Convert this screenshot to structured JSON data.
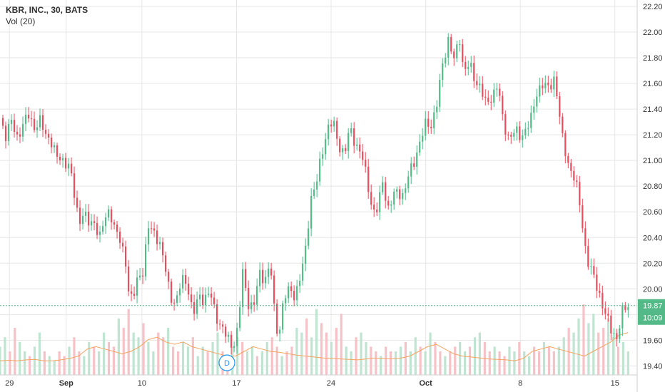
{
  "header": {
    "title": "KBR, INC., 30, BATS",
    "volume_label": "Vol (20)"
  },
  "marker": {
    "label": "D"
  },
  "chart_data": {
    "type": "candlestick",
    "ylim": [
      19.33,
      22.25
    ],
    "y_ticks": [
      "22.20",
      "22.00",
      "21.80",
      "21.60",
      "21.40",
      "21.20",
      "21.00",
      "20.80",
      "20.60",
      "20.40",
      "20.20",
      "20.00",
      "19.80",
      "19.60",
      "19.40"
    ],
    "x_ticks": [
      {
        "label": "29",
        "x": 0.5,
        "bold": false
      },
      {
        "label": "Sep",
        "x": 3.5,
        "bold": true
      },
      {
        "label": "10",
        "x": 7.5,
        "bold": false
      },
      {
        "label": "17",
        "x": 12.5,
        "bold": false
      },
      {
        "label": "24",
        "x": 17.5,
        "bold": false
      },
      {
        "label": "Oct",
        "x": 22.5,
        "bold": true
      },
      {
        "label": "8",
        "x": 27.5,
        "bold": false
      },
      {
        "label": "15",
        "x": 32.5,
        "bold": false
      }
    ],
    "last_price": "19.87",
    "countdown": "10:09",
    "colors": {
      "up": "#53b987",
      "down": "#eb4d5c",
      "volume_up": "#bfe4d1",
      "volume_down": "#f6c2c7",
      "volume_ma": "#f5a25d",
      "last_price": "#53b987",
      "marker": "#2196f3",
      "grid": "#e6e6e6"
    },
    "price_path": [
      [
        0,
        21.33
      ],
      [
        0.3,
        21.2
      ],
      [
        0.6,
        21.3
      ],
      [
        0.9,
        21.18
      ],
      [
        1.2,
        21.28
      ],
      [
        1.5,
        21.35
      ],
      [
        1.8,
        21.26
      ],
      [
        2.1,
        21.31
      ],
      [
        2.4,
        21.2
      ],
      [
        2.7,
        21.16
      ],
      [
        3.0,
        21.02
      ],
      [
        3.3,
        21.0
      ],
      [
        3.6,
        20.98
      ],
      [
        3.8,
        20.85
      ],
      [
        4.0,
        20.65
      ],
      [
        4.2,
        20.53
      ],
      [
        4.4,
        20.6
      ],
      [
        4.7,
        20.5
      ],
      [
        5.0,
        20.52
      ],
      [
        5.3,
        20.4
      ],
      [
        5.5,
        20.53
      ],
      [
        5.8,
        20.62
      ],
      [
        6.1,
        20.45
      ],
      [
        6.4,
        20.35
      ],
      [
        6.7,
        20.18
      ],
      [
        6.8,
        19.98
      ],
      [
        7.0,
        19.9
      ],
      [
        7.3,
        20.1
      ],
      [
        7.6,
        20.15
      ],
      [
        7.8,
        20.48
      ],
      [
        8.1,
        20.45
      ],
      [
        8.4,
        20.38
      ],
      [
        8.7,
        20.18
      ],
      [
        9.0,
        19.95
      ],
      [
        9.3,
        19.88
      ],
      [
        9.6,
        20.08
      ],
      [
        9.9,
        20.05
      ],
      [
        10.2,
        19.78
      ],
      [
        10.5,
        19.95
      ],
      [
        10.8,
        19.92
      ],
      [
        11.1,
        19.97
      ],
      [
        11.4,
        19.8
      ],
      [
        11.7,
        19.7
      ],
      [
        12.0,
        19.62
      ],
      [
        12.3,
        19.55
      ],
      [
        12.6,
        19.7
      ],
      [
        12.8,
        20.15
      ],
      [
        13.1,
        19.9
      ],
      [
        13.4,
        19.85
      ],
      [
        13.7,
        20.12
      ],
      [
        14.0,
        20.08
      ],
      [
        14.3,
        20.18
      ],
      [
        14.5,
        19.82
      ],
      [
        14.7,
        19.62
      ],
      [
        15.0,
        19.92
      ],
      [
        15.3,
        20.0
      ],
      [
        15.6,
        19.95
      ],
      [
        15.9,
        20.1
      ],
      [
        16.2,
        20.35
      ],
      [
        16.4,
        20.7
      ],
      [
        16.7,
        20.8
      ],
      [
        17.0,
        21.05
      ],
      [
        17.3,
        21.25
      ],
      [
        17.6,
        21.3
      ],
      [
        17.9,
        21.12
      ],
      [
        18.2,
        21.05
      ],
      [
        18.5,
        21.25
      ],
      [
        18.8,
        21.13
      ],
      [
        19.1,
        21.05
      ],
      [
        19.4,
        20.85
      ],
      [
        19.7,
        20.6
      ],
      [
        20.0,
        20.62
      ],
      [
        20.2,
        20.86
      ],
      [
        20.5,
        20.62
      ],
      [
        20.8,
        20.72
      ],
      [
        21.0,
        20.76
      ],
      [
        21.3,
        20.73
      ],
      [
        21.6,
        20.88
      ],
      [
        21.9,
        21.0
      ],
      [
        22.2,
        21.15
      ],
      [
        22.5,
        21.28
      ],
      [
        22.8,
        21.28
      ],
      [
        23.1,
        21.45
      ],
      [
        23.4,
        21.75
      ],
      [
        23.7,
        21.95
      ],
      [
        24.0,
        21.78
      ],
      [
        24.3,
        21.95
      ],
      [
        24.5,
        21.7
      ],
      [
        24.8,
        21.75
      ],
      [
        25.1,
        21.62
      ],
      [
        25.4,
        21.58
      ],
      [
        25.7,
        21.42
      ],
      [
        26.0,
        21.5
      ],
      [
        26.3,
        21.6
      ],
      [
        26.6,
        21.28
      ],
      [
        26.9,
        21.18
      ],
      [
        27.2,
        21.23
      ],
      [
        27.5,
        21.18
      ],
      [
        27.8,
        21.25
      ],
      [
        28.1,
        21.33
      ],
      [
        28.4,
        21.55
      ],
      [
        28.7,
        21.6
      ],
      [
        29.0,
        21.55
      ],
      [
        29.3,
        21.65
      ],
      [
        29.5,
        21.45
      ],
      [
        29.7,
        21.18
      ],
      [
        29.9,
        21.05
      ],
      [
        30.1,
        20.95
      ],
      [
        30.4,
        20.85
      ],
      [
        30.7,
        20.6
      ],
      [
        30.9,
        20.35
      ],
      [
        31.1,
        20.2
      ],
      [
        31.4,
        20.08
      ],
      [
        31.7,
        19.95
      ],
      [
        32.0,
        19.8
      ],
      [
        32.3,
        19.68
      ],
      [
        32.6,
        19.62
      ],
      [
        32.9,
        19.82
      ],
      [
        33.2,
        19.87
      ]
    ],
    "volume": [
      0.06,
      0.08,
      0.05,
      0.1,
      0.07,
      0.05,
      0.04,
      0.06,
      0.09,
      0.05,
      0.04,
      0.03,
      0.05,
      0.04,
      0.06,
      0.08,
      0.05,
      0.04,
      0.07,
      0.06,
      0.05,
      0.09,
      0.07,
      0.06,
      0.12,
      0.1,
      0.14,
      0.09,
      0.08,
      0.11,
      0.07,
      0.05,
      0.09,
      0.08,
      0.1,
      0.06,
      0.05,
      0.07,
      0.06,
      0.08,
      0.04,
      0.06,
      0.05,
      0.07,
      0.09,
      0.05,
      0.04,
      0.06,
      0.08,
      0.07,
      0.05,
      0.06,
      0.04,
      0.05,
      0.07,
      0.08,
      0.06,
      0.04,
      0.05,
      0.06,
      0.1,
      0.09,
      0.12,
      0.08,
      0.14,
      0.11,
      0.09,
      0.07,
      0.1,
      0.13,
      0.06,
      0.05,
      0.08,
      0.09,
      0.07,
      0.06,
      0.05,
      0.04,
      0.06,
      0.05,
      0.05,
      0.06,
      0.07,
      0.05,
      0.08,
      0.06,
      0.05,
      0.09,
      0.07,
      0.05,
      0.04,
      0.05,
      0.06,
      0.07,
      0.05,
      0.06,
      0.08,
      0.09,
      0.07,
      0.05,
      0.06,
      0.05,
      0.04,
      0.06,
      0.05,
      0.07,
      0.05,
      0.04,
      0.06,
      0.05,
      0.07,
      0.06,
      0.05,
      0.06,
      0.08,
      0.1,
      0.09,
      0.12,
      0.15,
      0.11,
      0.13,
      0.09,
      0.1,
      0.12,
      0.08,
      0.06,
      0.07,
      0.05
    ],
    "volume_ma": [
      0.03,
      0.031,
      0.03,
      0.032,
      0.033,
      0.03,
      0.03,
      0.032,
      0.035,
      0.04,
      0.055,
      0.06,
      0.055,
      0.05,
      0.045,
      0.05,
      0.06,
      0.075,
      0.08,
      0.07,
      0.065,
      0.07,
      0.06,
      0.055,
      0.05,
      0.045,
      0.04,
      0.04,
      0.05,
      0.06,
      0.055,
      0.05,
      0.048,
      0.045,
      0.042,
      0.04,
      0.038,
      0.036,
      0.035,
      0.034,
      0.033,
      0.032,
      0.034,
      0.036,
      0.035,
      0.034,
      0.036,
      0.04,
      0.05,
      0.06,
      0.065,
      0.055,
      0.045,
      0.04,
      0.038,
      0.036,
      0.034,
      0.033,
      0.032,
      0.03,
      0.035,
      0.05,
      0.055,
      0.06,
      0.055,
      0.05,
      0.045,
      0.04,
      0.05,
      0.06,
      0.07,
      0.085,
      0.09
    ]
  }
}
